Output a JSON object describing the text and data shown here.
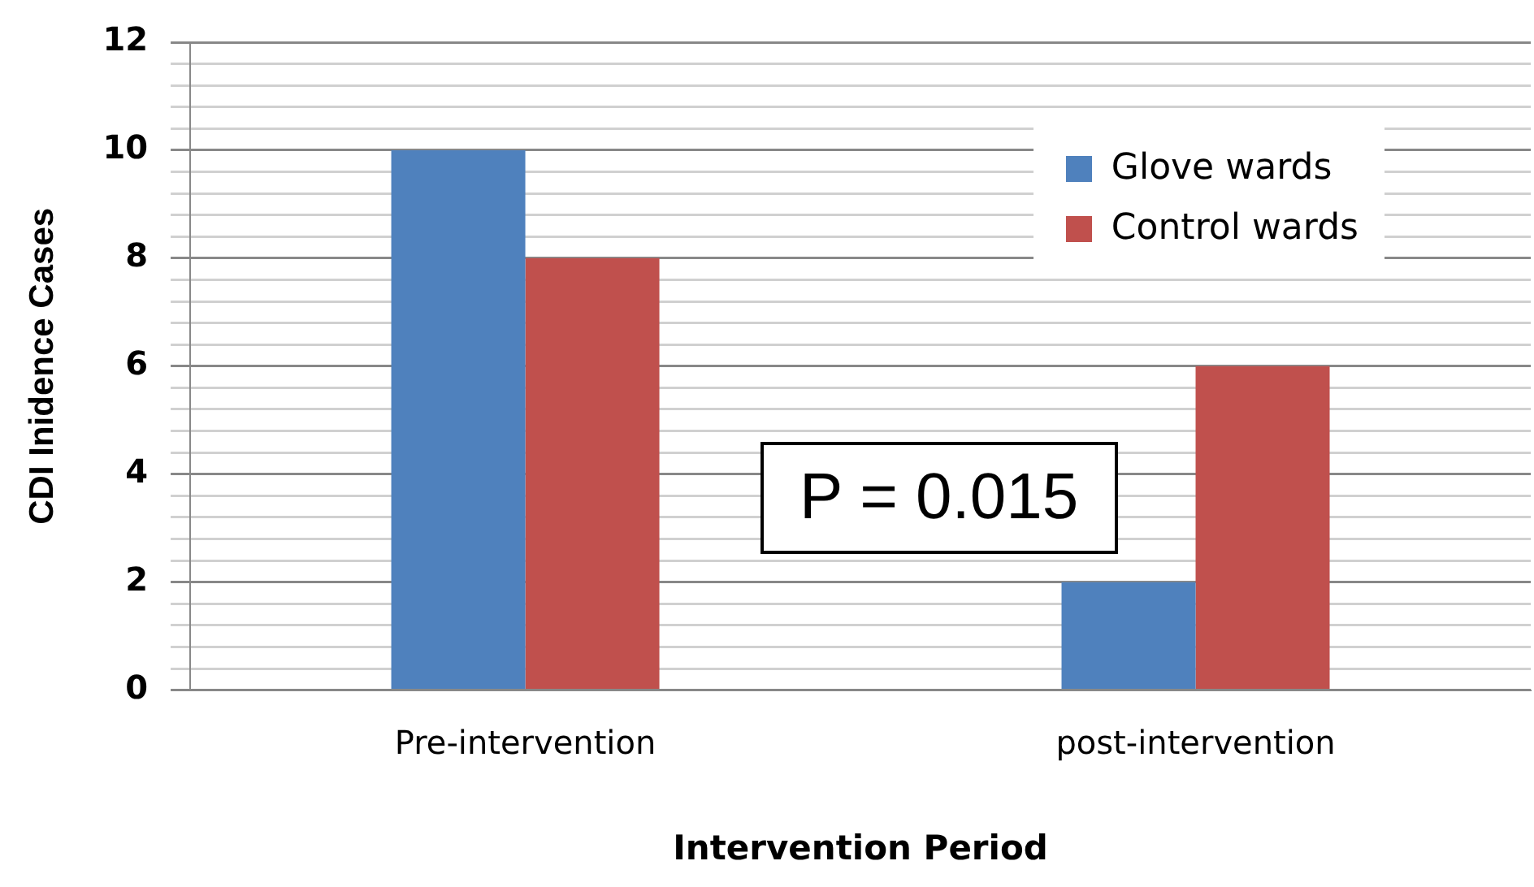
{
  "chart_data": {
    "type": "bar",
    "xlabel": "Intervention Period",
    "ylabel": "CDI Inidence Cases",
    "categories": [
      "Pre-intervention",
      "post-intervention"
    ],
    "series": [
      {
        "name": "Glove wards",
        "color": "#4f81bd",
        "values": [
          10,
          2
        ]
      },
      {
        "name": "Control wards",
        "color": "#c0504d",
        "values": [
          8,
          6
        ]
      }
    ],
    "ylim": [
      0,
      12
    ],
    "yticks": [
      0,
      {
        "value": 0.4,
        "label": null
      },
      {
        "value": 0.8,
        "label": null
      },
      {
        "value": 1.2,
        "label": null
      },
      {
        "value": 1.6,
        "label": null
      },
      2,
      {
        "value": 2.4,
        "label": null
      },
      {
        "value": 2.8,
        "label": null
      },
      {
        "value": 3.2,
        "label": null
      },
      {
        "value": 3.6,
        "label": null
      },
      4,
      {
        "value": 4.4,
        "label": null
      },
      {
        "value": 4.8,
        "label": null
      },
      {
        "value": 5.2,
        "label": null
      },
      {
        "value": 5.6,
        "label": null
      },
      6,
      {
        "value": 6.4,
        "label": null
      },
      {
        "value": 6.8,
        "label": null
      },
      {
        "value": 7.2,
        "label": null
      },
      {
        "value": 7.6,
        "label": null
      },
      8,
      {
        "value": 8.4,
        "label": null
      },
      {
        "value": 8.8,
        "label": null
      },
      {
        "value": 9.2,
        "label": null
      },
      {
        "value": 9.6,
        "label": null
      },
      10,
      {
        "value": 10.4,
        "label": null
      },
      {
        "value": 10.8,
        "label": null
      },
      {
        "value": 11.2,
        "label": null
      },
      {
        "value": 11.6,
        "label": null
      },
      12
    ],
    "grid": "y",
    "legend": "top right",
    "annotations": [
      "P = 0.015"
    ]
  }
}
